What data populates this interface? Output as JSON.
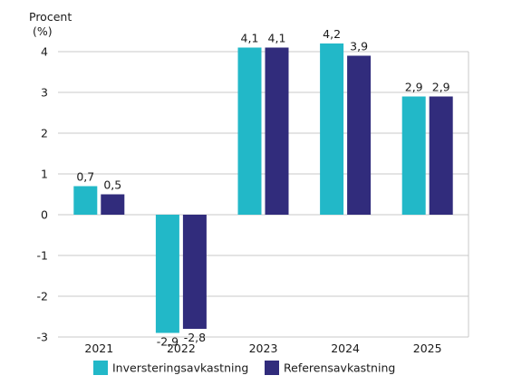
{
  "chart_data": {
    "type": "bar",
    "title": "",
    "ylabel_lines": [
      "Procent",
      "(%)"
    ],
    "xlabel": "",
    "categories": [
      "2021",
      "2022",
      "2023",
      "2024",
      "2025"
    ],
    "series": [
      {
        "name": "Inversteringsavkastning",
        "color": "#22b8c8",
        "values": [
          0.7,
          -2.9,
          4.1,
          4.2,
          2.9
        ],
        "labels": [
          "0,7",
          "-2,9",
          "4,1",
          "4,2",
          "2,9"
        ]
      },
      {
        "name": "Referensavkastning",
        "color": "#312c7c",
        "values": [
          0.5,
          -2.8,
          4.1,
          3.9,
          2.9
        ],
        "labels": [
          "0,5",
          "-2,8",
          "4,1",
          "3,9",
          "2,9"
        ]
      }
    ],
    "ylim": [
      -3,
      4.4
    ],
    "yticks": [
      4,
      3,
      2,
      1,
      0,
      -1,
      -2,
      -3
    ],
    "grid": true,
    "legend_position": "bottom-center"
  }
}
